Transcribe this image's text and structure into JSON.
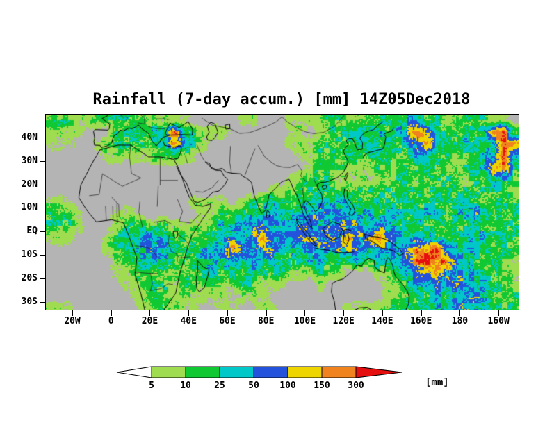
{
  "figure": {
    "title": "Rainfall (7-day accum.) [mm] 14Z05Dec2018",
    "background_color": "#ffffff"
  },
  "map": {
    "no_rain_color": "#b4b4b4",
    "coastline_color": "#000000",
    "lon_range": [
      -34,
      210
    ],
    "lat_range": [
      50,
      -33
    ],
    "lat_ticks": [
      {
        "label": "40N",
        "deg": 40
      },
      {
        "label": "30N",
        "deg": 30
      },
      {
        "label": "20N",
        "deg": 20
      },
      {
        "label": "10N",
        "deg": 10
      },
      {
        "label": "EQ",
        "deg": 0
      },
      {
        "label": "10S",
        "deg": -10
      },
      {
        "label": "20S",
        "deg": -20
      },
      {
        "label": "30S",
        "deg": -30
      }
    ],
    "lon_ticks": [
      {
        "label": "20W",
        "deg": -20
      },
      {
        "label": "0",
        "deg": 0
      },
      {
        "label": "20E",
        "deg": 20
      },
      {
        "label": "40E",
        "deg": 40
      },
      {
        "label": "60E",
        "deg": 60
      },
      {
        "label": "80E",
        "deg": 80
      },
      {
        "label": "100E",
        "deg": 100
      },
      {
        "label": "120E",
        "deg": 120
      },
      {
        "label": "140E",
        "deg": 140
      },
      {
        "label": "160E",
        "deg": 160
      },
      {
        "label": "180",
        "deg": 180
      },
      {
        "label": "160W",
        "deg": 200
      }
    ]
  },
  "chart_data": {
    "type": "heatmap",
    "title": "Rainfall (7-day accum.) [mm] 14Z05Dec2018",
    "units": "mm",
    "colorbar": {
      "thresholds": [
        5,
        10,
        25,
        50,
        100,
        150,
        300
      ],
      "below_color": "#ffffff",
      "band_colors": [
        "#a0dc50",
        "#0fc832",
        "#00c8c8",
        "#2353dc",
        "#eed500",
        "#f0831e"
      ],
      "above_color": "#e60f0f",
      "units_label": "[mm]"
    },
    "level_legend": [
      "<5",
      "5-10",
      "10-25",
      "25-50",
      "50-100",
      "100-150",
      "150-300",
      ">300"
    ],
    "grid": {
      "comment": "7-day accumulated rainfall, coarse 5-degree field. Each row string = 48 cells from 30W to 210E; rows from 50N to 35S. Digit = level index into level_legend.",
      "lon0": -30,
      "dlon": 5,
      "lat0": 50,
      "dlat": -5,
      "rows": [
        "221122222211110000011000111122122222332212222110",
        "111000222233632111000000110122232323464322223662",
        "110012222223642100000000111222223232346322322366",
        "000001111122211000000000011222222322233221223363",
        "000000000000000000000000001222111221222211233662",
        "000000000000000000000000112221111112212222122332",
        "000000000000000000000011122222222222222222222221",
        "110000000000001111012232223333322322322222322222",
        "221000111000000112223343334433433233233323343222",
        "221000122222111123334433444344443433222222232222",
        "110001233433222223434644344444644643333222333222",
        "000001233343322334643443334434443443466643332222",
        "000000122333222333433332223322232333467664322221",
        "000000112222212232223222111211000112344644332211",
        "000000011222122121122111000100000011233434433221",
        "000000001121111111011100000000000011222323343222",
        "110000000112111001100110000000111122223334433222"
      ]
    }
  }
}
